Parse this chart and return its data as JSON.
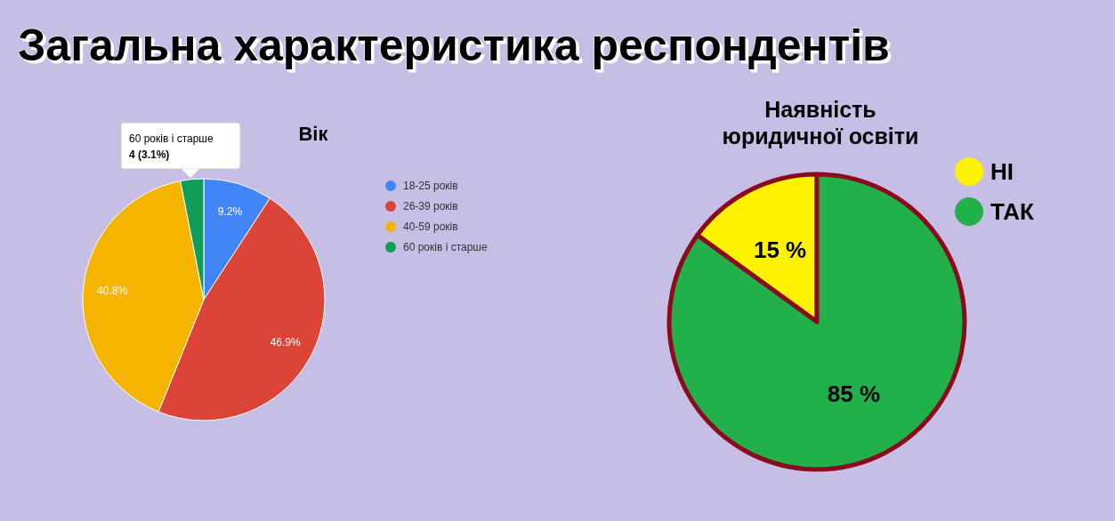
{
  "chart_data": [
    {
      "type": "pie",
      "title": "Загальна характеристика респондентів",
      "subtitle": "Вік",
      "categories": [
        "18-25 років",
        "26-39 років",
        "40-59 років",
        "60 років і старше"
      ],
      "values": [
        9.2,
        46.9,
        40.8,
        3.1
      ],
      "colors": [
        "#4285f4",
        "#db4437",
        "#f4b400",
        "#0f9d58"
      ],
      "value_labels": [
        "9.2%",
        "46.9%",
        "40.8%",
        null
      ],
      "legend": "right",
      "annotations": [
        {
          "text": "60 років і старше\n4 (3.1%)"
        }
      ]
    },
    {
      "type": "pie",
      "title": "Наявність\nюридичної освіти",
      "categories": [
        "НІ",
        "ТАК"
      ],
      "values": [
        15,
        85
      ],
      "colors": [
        "#fff200",
        "#22b04b"
      ],
      "value_labels": [
        "15 %",
        "85 %"
      ],
      "legend": "top right"
    }
  ]
}
